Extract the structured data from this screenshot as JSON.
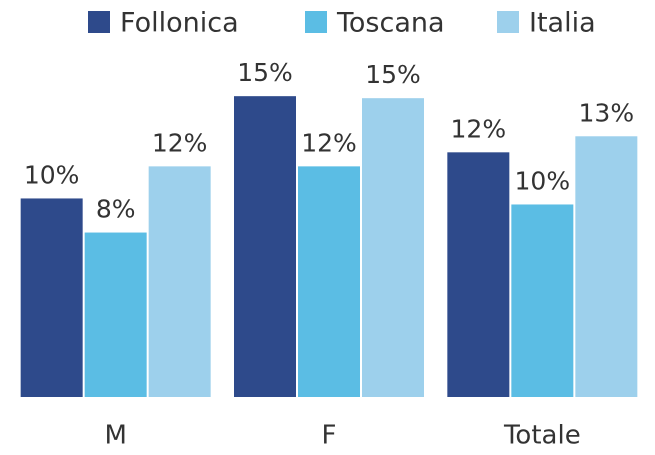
{
  "chart_data": {
    "type": "bar",
    "categories": [
      "M",
      "F",
      "Totale"
    ],
    "series": [
      {
        "name": "Follonica",
        "color": "#2e4a8b",
        "values": [
          9.9,
          15,
          12.2
        ],
        "value_labels": [
          "10%",
          "15%",
          "12%"
        ]
      },
      {
        "name": "Toscana",
        "color": "#5bbde4",
        "values": [
          8.2,
          11.5,
          9.6
        ],
        "value_labels": [
          "8%",
          "12%",
          "10%"
        ]
      },
      {
        "name": "Italia",
        "color": "#9dd0ec",
        "values": [
          11.5,
          14.9,
          13
        ],
        "value_labels": [
          "12%",
          "15%",
          "13%"
        ]
      }
    ],
    "ylim": [
      0,
      18
    ],
    "legend": "top"
  }
}
